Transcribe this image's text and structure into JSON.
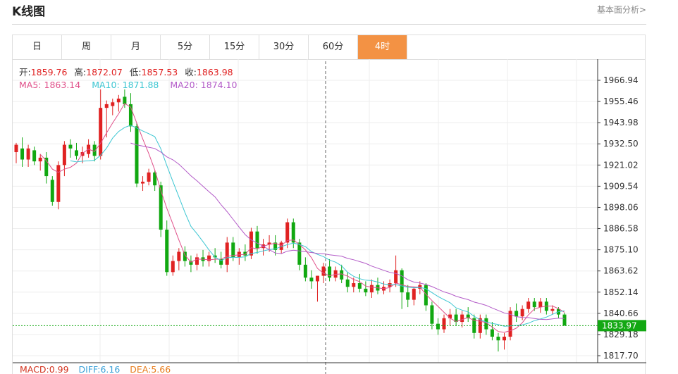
{
  "header": {
    "title": "K线图",
    "analysis_link": "基本面分析>"
  },
  "tabs": [
    {
      "label": "日",
      "active": false
    },
    {
      "label": "周",
      "active": false
    },
    {
      "label": "月",
      "active": false
    },
    {
      "label": "5分",
      "active": false
    },
    {
      "label": "15分",
      "active": false
    },
    {
      "label": "30分",
      "active": false
    },
    {
      "label": "60分",
      "active": false
    },
    {
      "label": "4时",
      "active": true
    }
  ],
  "ohlc_info": {
    "open_label": "开:",
    "open": "1859.76",
    "high_label": "高:",
    "high": "1872.07",
    "low_label": "低:",
    "low": "1857.53",
    "close_label": "收:",
    "close": "1863.98"
  },
  "ma_info": {
    "ma5_label": "MA5:",
    "ma5": "1863.14",
    "ma10_label": "MA10:",
    "ma10": "1871.88",
    "ma20_label": "MA20:",
    "ma20": "1874.10"
  },
  "macd_info": {
    "macd_label": "MACD:",
    "macd": "0.99",
    "diff_label": "DIFF:",
    "diff": "6.16",
    "dea_label": "DEA:",
    "dea": "5.66"
  },
  "colors": {
    "up": "#e02222",
    "down": "#11a811",
    "ma5": "#e0508a",
    "ma10": "#3cc6d2",
    "ma20": "#b35bc8",
    "accent": "#f39244",
    "current_price_bg": "#13a813"
  },
  "chart_data": {
    "type": "candlestick",
    "ylim": [
      1817.7,
      1978.4
    ],
    "y_ticks": [
      "1966.94",
      "1955.46",
      "1943.98",
      "1932.50",
      "1921.02",
      "1909.54",
      "1898.06",
      "1886.58",
      "1875.10",
      "1863.62",
      "1852.14",
      "1840.66",
      "1829.18",
      "1817.70"
    ],
    "current_price": "1833.97",
    "candles": [
      [
        1928,
        1933,
        1922,
        1932
      ],
      [
        1930,
        1936,
        1920,
        1924
      ],
      [
        1924,
        1932,
        1920,
        1930
      ],
      [
        1929,
        1931,
        1921,
        1923
      ],
      [
        1923,
        1927,
        1918,
        1925
      ],
      [
        1925,
        1928,
        1911,
        1915
      ],
      [
        1913,
        1915,
        1899,
        1901
      ],
      [
        1901,
        1923,
        1897,
        1921
      ],
      [
        1921,
        1934,
        1915,
        1932
      ],
      [
        1932,
        1935,
        1925,
        1930
      ],
      [
        1929,
        1933,
        1924,
        1926
      ],
      [
        1926,
        1931,
        1922,
        1928
      ],
      [
        1927,
        1935,
        1925,
        1932
      ],
      [
        1932,
        1934,
        1923,
        1926
      ],
      [
        1926,
        1962,
        1924,
        1952
      ],
      [
        1952,
        1956,
        1936,
        1954
      ],
      [
        1953,
        1957,
        1948,
        1955
      ],
      [
        1955,
        1959,
        1950,
        1957
      ],
      [
        1958,
        1962,
        1952,
        1954
      ],
      [
        1954,
        1960,
        1939,
        1942
      ],
      [
        1942,
        1944,
        1909,
        1911
      ],
      [
        1911,
        1915,
        1907,
        1912
      ],
      [
        1912,
        1919,
        1910,
        1917
      ],
      [
        1917,
        1918,
        1907,
        1910
      ],
      [
        1910,
        1912,
        1882,
        1886
      ],
      [
        1886,
        1891,
        1861,
        1863
      ],
      [
        1863,
        1872,
        1861,
        1869
      ],
      [
        1869,
        1876,
        1864,
        1874
      ],
      [
        1874,
        1877,
        1866,
        1869
      ],
      [
        1869,
        1872,
        1863,
        1867
      ],
      [
        1867,
        1873,
        1864,
        1871
      ],
      [
        1871,
        1875,
        1866,
        1869
      ],
      [
        1869,
        1874,
        1866,
        1872
      ],
      [
        1872,
        1876,
        1868,
        1871
      ],
      [
        1870,
        1874,
        1865,
        1867
      ],
      [
        1867,
        1882,
        1863,
        1879
      ],
      [
        1879,
        1882,
        1869,
        1871
      ],
      [
        1871,
        1876,
        1867,
        1874
      ],
      [
        1874,
        1878,
        1869,
        1872
      ],
      [
        1872,
        1887,
        1870,
        1885
      ],
      [
        1885,
        1888,
        1873,
        1876
      ],
      [
        1876,
        1881,
        1872,
        1878
      ],
      [
        1878,
        1883,
        1874,
        1879
      ],
      [
        1879,
        1883,
        1872,
        1875
      ],
      [
        1875,
        1880,
        1873,
        1879
      ],
      [
        1879,
        1892,
        1876,
        1890
      ],
      [
        1890,
        1892,
        1876,
        1879
      ],
      [
        1879,
        1881,
        1864,
        1867
      ],
      [
        1867,
        1871,
        1858,
        1860
      ],
      [
        1860,
        1864,
        1854,
        1858
      ],
      [
        1858,
        1861,
        1847,
        1861
      ],
      [
        1861,
        1868,
        1857,
        1866
      ],
      [
        1866,
        1870,
        1858,
        1860
      ],
      [
        1860,
        1866,
        1858,
        1864
      ],
      [
        1864,
        1867,
        1857,
        1859
      ],
      [
        1859,
        1863,
        1852,
        1855
      ],
      [
        1855,
        1860,
        1852,
        1857
      ],
      [
        1857,
        1862,
        1852,
        1854
      ],
      [
        1854,
        1858,
        1850,
        1852
      ],
      [
        1852,
        1859,
        1849,
        1856
      ],
      [
        1856,
        1860,
        1851,
        1853
      ],
      [
        1853,
        1858,
        1851,
        1855
      ],
      [
        1855,
        1859,
        1852,
        1857
      ],
      [
        1857,
        1872,
        1855,
        1864
      ],
      [
        1864,
        1865,
        1843,
        1852
      ],
      [
        1852,
        1856,
        1844,
        1848
      ],
      [
        1848,
        1855,
        1845,
        1854
      ],
      [
        1854,
        1858,
        1851,
        1856
      ],
      [
        1856,
        1857,
        1842,
        1845
      ],
      [
        1845,
        1847,
        1832,
        1835
      ],
      [
        1835,
        1838,
        1829,
        1832
      ],
      [
        1832,
        1840,
        1830,
        1838
      ],
      [
        1838,
        1843,
        1834,
        1840
      ],
      [
        1840,
        1843,
        1834,
        1836
      ],
      [
        1836,
        1842,
        1833,
        1840
      ],
      [
        1840,
        1844,
        1836,
        1838
      ],
      [
        1838,
        1840,
        1827,
        1830
      ],
      [
        1830,
        1840,
        1827,
        1838
      ],
      [
        1838,
        1840,
        1829,
        1832
      ],
      [
        1832,
        1836,
        1826,
        1828
      ],
      [
        1828,
        1830,
        1820,
        1826
      ],
      [
        1826,
        1830,
        1821,
        1828
      ],
      [
        1828,
        1844,
        1826,
        1842
      ],
      [
        1842,
        1846,
        1836,
        1839
      ],
      [
        1839,
        1845,
        1837,
        1843
      ],
      [
        1843,
        1849,
        1841,
        1847
      ],
      [
        1847,
        1849,
        1842,
        1844
      ],
      [
        1844,
        1849,
        1841,
        1847
      ],
      [
        1847,
        1849,
        1840,
        1842
      ],
      [
        1842,
        1845,
        1840,
        1843
      ],
      [
        1843,
        1844,
        1838,
        1840
      ],
      [
        1840,
        1841,
        1834,
        1834
      ]
    ]
  }
}
